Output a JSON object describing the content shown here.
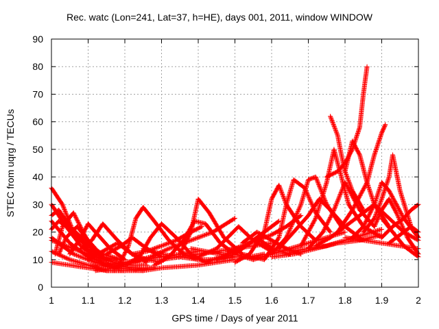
{
  "chart_data": {
    "type": "scatter",
    "title": "Rec. watc (Lon=241, Lat=37, h=HE), days 001, 2011, window WINDOW",
    "xlabel": "GPS time / Days of year 2011",
    "ylabel": "STEC from uqrg / TECUs",
    "xlim": [
      1,
      2
    ],
    "ylim": [
      0,
      90
    ],
    "xticks": [
      "1",
      "1.1",
      "1.2",
      "1.3",
      "1.4",
      "1.5",
      "1.6",
      "1.7",
      "1.8",
      "1.9",
      "2"
    ],
    "yticks": [
      "0",
      "10",
      "20",
      "30",
      "40",
      "50",
      "60",
      "70",
      "80",
      "90"
    ],
    "grid": true,
    "marker": "+",
    "color": "#ff0000",
    "series": [
      {
        "x": [
          1.0,
          1.03,
          1.06,
          1.1,
          1.14,
          1.18
        ],
        "y": [
          36,
          30,
          20,
          14,
          11,
          10
        ]
      },
      {
        "x": [
          1.0,
          1.04,
          1.08,
          1.12,
          1.17,
          1.22,
          1.26
        ],
        "y": [
          30,
          22,
          15,
          11,
          9,
          8,
          8
        ]
      },
      {
        "x": [
          1.0,
          1.05,
          1.1,
          1.16,
          1.22,
          1.28
        ],
        "y": [
          24,
          16,
          11,
          8,
          7,
          7
        ]
      },
      {
        "x": [
          1.0,
          1.06,
          1.12,
          1.18,
          1.25
        ],
        "y": [
          18,
          12,
          9,
          7,
          6
        ]
      },
      {
        "x": [
          1.0,
          1.05,
          1.1,
          1.15,
          1.2
        ],
        "y": [
          13,
          10,
          8,
          6,
          6
        ]
      },
      {
        "x": [
          1.0,
          1.05,
          1.1,
          1.15,
          1.2,
          1.25,
          1.3,
          1.4,
          1.5
        ],
        "y": [
          9,
          8,
          7,
          6,
          6,
          6,
          7,
          8,
          10
        ]
      },
      {
        "x": [
          1.0,
          1.04,
          1.08,
          1.12,
          1.16
        ],
        "y": [
          17,
          15,
          13,
          11,
          10
        ]
      },
      {
        "x": [
          1.0,
          1.02,
          1.05,
          1.09,
          1.14,
          1.19
        ],
        "y": [
          21,
          24,
          21,
          16,
          12,
          10
        ]
      },
      {
        "x": [
          1.0,
          1.02,
          1.05,
          1.09,
          1.13
        ],
        "y": [
          26,
          28,
          22,
          17,
          12
        ]
      },
      {
        "x": [
          1.01,
          1.03,
          1.06,
          1.09,
          1.12
        ],
        "y": [
          12,
          22,
          27,
          19,
          12
        ]
      },
      {
        "x": [
          1.02,
          1.04,
          1.07,
          1.1,
          1.14
        ],
        "y": [
          12,
          18,
          22,
          17,
          11
        ]
      },
      {
        "x": [
          1.05,
          1.08,
          1.1,
          1.12,
          1.16,
          1.2
        ],
        "y": [
          12,
          18,
          23,
          20,
          14,
          10
        ]
      },
      {
        "x": [
          1.08,
          1.11,
          1.14,
          1.18,
          1.22,
          1.26
        ],
        "y": [
          14,
          17,
          23,
          17,
          12,
          9
        ]
      },
      {
        "x": [
          1.1,
          1.14,
          1.18,
          1.22,
          1.26,
          1.3
        ],
        "y": [
          10,
          13,
          16,
          12,
          10,
          9
        ]
      },
      {
        "x": [
          1.15,
          1.19,
          1.22,
          1.26,
          1.3
        ],
        "y": [
          12,
          15,
          18,
          14,
          11
        ]
      },
      {
        "x": [
          1.1,
          1.15,
          1.2,
          1.25,
          1.3,
          1.35,
          1.4
        ],
        "y": [
          8,
          8,
          9,
          10,
          11,
          12,
          13
        ]
      },
      {
        "x": [
          1.18,
          1.21,
          1.23,
          1.25,
          1.28,
          1.32,
          1.36,
          1.4
        ],
        "y": [
          7,
          15,
          25,
          29,
          24,
          17,
          12,
          10
        ]
      },
      {
        "x": [
          1.12,
          1.17,
          1.22,
          1.27,
          1.32,
          1.38,
          1.44,
          1.5
        ],
        "y": [
          6,
          7,
          9,
          11,
          14,
          17,
          20,
          25
        ]
      },
      {
        "x": [
          1.2,
          1.24,
          1.27,
          1.3,
          1.34,
          1.38,
          1.42
        ],
        "y": [
          8,
          11,
          18,
          23,
          18,
          12,
          9
        ]
      },
      {
        "x": [
          1.22,
          1.26,
          1.3,
          1.34,
          1.38,
          1.41
        ],
        "y": [
          12,
          13,
          15,
          17,
          20,
          22
        ]
      },
      {
        "x": [
          1.25,
          1.3,
          1.35,
          1.4,
          1.45,
          1.5
        ],
        "y": [
          14,
          12,
          11,
          10,
          10,
          11
        ]
      },
      {
        "x": [
          1.28,
          1.32,
          1.36,
          1.39,
          1.42,
          1.46,
          1.5,
          1.55
        ],
        "y": [
          8,
          11,
          17,
          24,
          23,
          16,
          12,
          10
        ]
      },
      {
        "x": [
          1.3,
          1.35,
          1.4,
          1.45,
          1.5,
          1.55,
          1.6
        ],
        "y": [
          10,
          11,
          12,
          13,
          14,
          15,
          16
        ]
      },
      {
        "x": [
          1.35,
          1.38,
          1.4,
          1.43,
          1.47,
          1.52,
          1.58
        ],
        "y": [
          12,
          20,
          32,
          27,
          18,
          12,
          10
        ]
      },
      {
        "x": [
          1.38,
          1.42,
          1.46,
          1.5,
          1.54,
          1.58
        ],
        "y": [
          14,
          13,
          12,
          11,
          11,
          12
        ]
      },
      {
        "x": [
          1.4,
          1.45,
          1.48,
          1.51,
          1.55,
          1.6
        ],
        "y": [
          11,
          14,
          18,
          22,
          17,
          13
        ]
      },
      {
        "x": [
          1.42,
          1.46,
          1.5,
          1.54,
          1.58,
          1.62
        ],
        "y": [
          9,
          11,
          13,
          16,
          20,
          24
        ]
      },
      {
        "x": [
          1.45,
          1.5,
          1.53,
          1.56,
          1.6,
          1.65
        ],
        "y": [
          10,
          12,
          15,
          18,
          14,
          12
        ]
      },
      {
        "x": [
          1.48,
          1.52,
          1.56,
          1.6,
          1.64,
          1.68
        ],
        "y": [
          13,
          15,
          17,
          19,
          22,
          26
        ]
      },
      {
        "x": [
          1.5,
          1.54,
          1.58,
          1.6,
          1.62,
          1.64,
          1.68,
          1.72
        ],
        "y": [
          9,
          12,
          20,
          32,
          37,
          30,
          22,
          17
        ]
      },
      {
        "x": [
          1.52,
          1.56,
          1.6,
          1.64,
          1.68
        ],
        "y": [
          16,
          20,
          17,
          14,
          12
        ]
      },
      {
        "x": [
          1.55,
          1.6,
          1.65,
          1.7,
          1.75,
          1.8
        ],
        "y": [
          10,
          12,
          14,
          16,
          18,
          20
        ]
      },
      {
        "x": [
          1.58,
          1.62,
          1.64,
          1.66,
          1.69,
          1.72,
          1.76
        ],
        "y": [
          10,
          18,
          30,
          39,
          36,
          27,
          20
        ]
      },
      {
        "x": [
          1.6,
          1.64,
          1.68,
          1.7,
          1.72,
          1.75,
          1.79
        ],
        "y": [
          12,
          18,
          30,
          39,
          40,
          30,
          22
        ]
      },
      {
        "x": [
          1.62,
          1.66,
          1.7,
          1.73,
          1.76,
          1.8,
          1.84
        ],
        "y": [
          14,
          20,
          26,
          32,
          28,
          22,
          18
        ]
      },
      {
        "x": [
          1.65,
          1.7,
          1.75,
          1.8,
          1.85,
          1.9
        ],
        "y": [
          13,
          14,
          15,
          17,
          19,
          21
        ]
      },
      {
        "x": [
          1.68,
          1.72,
          1.75,
          1.77,
          1.79,
          1.81,
          1.85,
          1.9
        ],
        "y": [
          15,
          25,
          38,
          50,
          40,
          30,
          22,
          18
        ]
      },
      {
        "x": [
          1.7,
          1.74,
          1.77,
          1.8,
          1.84,
          1.88
        ],
        "y": [
          14,
          20,
          28,
          38,
          28,
          22
        ]
      },
      {
        "x": [
          1.76,
          1.78,
          1.79,
          1.8,
          1.82,
          1.85
        ],
        "y": [
          62,
          55,
          48,
          42,
          35,
          28
        ]
      },
      {
        "x": [
          1.75,
          1.78,
          1.8,
          1.82,
          1.84,
          1.85,
          1.86
        ],
        "y": [
          40,
          42,
          45,
          50,
          58,
          70,
          80
        ]
      },
      {
        "x": [
          1.8,
          1.82,
          1.84,
          1.86,
          1.88,
          1.92
        ],
        "y": [
          42,
          53,
          48,
          38,
          30,
          22
        ]
      },
      {
        "x": [
          1.72,
          1.76,
          1.8,
          1.84,
          1.88,
          1.92,
          1.96,
          2.0
        ],
        "y": [
          15,
          18,
          22,
          26,
          30,
          25,
          20,
          17
        ]
      },
      {
        "x": [
          1.78,
          1.82,
          1.86,
          1.88,
          1.9,
          1.91
        ],
        "y": [
          20,
          28,
          38,
          48,
          56,
          59
        ]
      },
      {
        "x": [
          1.82,
          1.85,
          1.88,
          1.9,
          1.92,
          1.96,
          2.0
        ],
        "y": [
          18,
          22,
          30,
          38,
          35,
          25,
          18
        ]
      },
      {
        "x": [
          1.85,
          1.88,
          1.9,
          1.92,
          1.93,
          1.95,
          1.98,
          2.0
        ],
        "y": [
          20,
          25,
          32,
          40,
          48,
          35,
          22,
          18
        ]
      },
      {
        "x": [
          1.88,
          1.9,
          1.92,
          1.94,
          1.97,
          2.0
        ],
        "y": [
          22,
          28,
          32,
          27,
          18,
          12
        ]
      },
      {
        "x": [
          1.9,
          1.93,
          1.96,
          1.98,
          2.0
        ],
        "y": [
          18,
          22,
          25,
          28,
          30
        ]
      },
      {
        "x": [
          1.9,
          1.93,
          1.96,
          2.0
        ],
        "y": [
          25,
          20,
          15,
          11
        ]
      },
      {
        "x": [
          1.8,
          1.85,
          1.9,
          1.95,
          2.0
        ],
        "y": [
          18,
          17,
          16,
          15,
          14
        ]
      },
      {
        "x": [
          1.92,
          1.95,
          1.98,
          2.0
        ],
        "y": [
          16,
          19,
          22,
          20
        ]
      },
      {
        "x": [
          1.6,
          1.66,
          1.72,
          1.78,
          1.84,
          1.9
        ],
        "y": [
          11,
          12,
          14,
          16,
          17,
          19
        ]
      }
    ]
  }
}
